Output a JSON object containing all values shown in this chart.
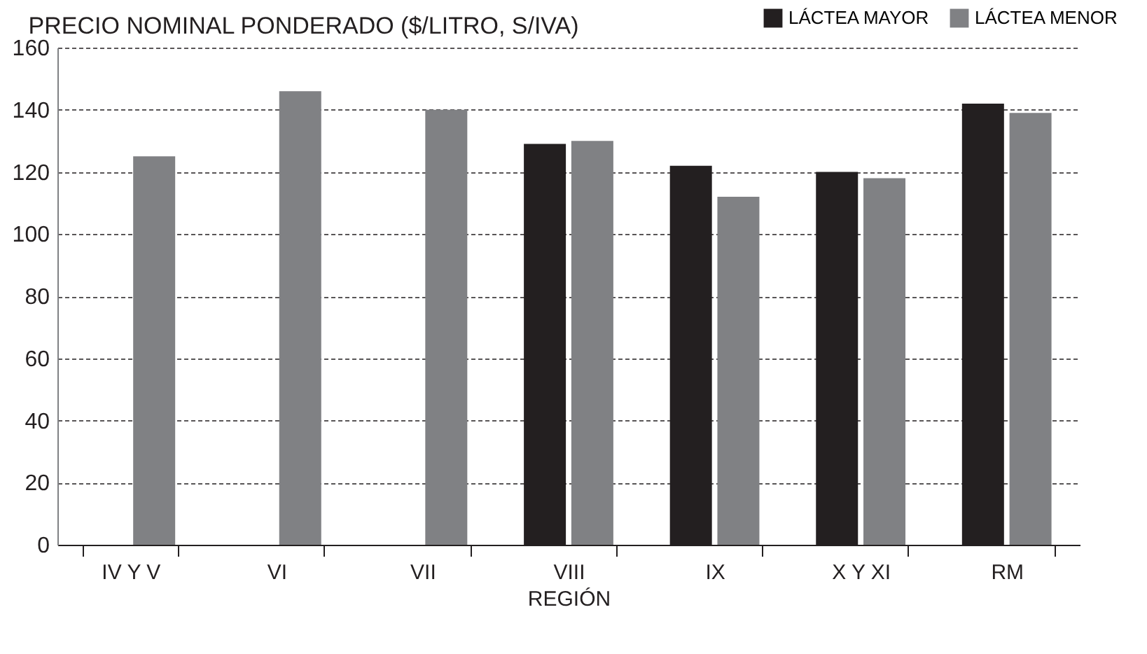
{
  "chart_data": {
    "type": "bar",
    "title": "PRECIO NOMINAL PONDERADO ($/LITRO, S/IVA)",
    "xlabel": "REGIÓN",
    "categories": [
      "IV Y V",
      "VI",
      "VII",
      "VIII",
      "IX",
      "X Y XI",
      "RM"
    ],
    "series": [
      {
        "name": "LÁCTEA MAYOR",
        "color": "#231f20",
        "values": [
          null,
          null,
          null,
          129,
          122,
          120,
          142
        ]
      },
      {
        "name": "LÁCTEA MENOR",
        "color": "#808184",
        "values": [
          125,
          146,
          140,
          130,
          112,
          118,
          139
        ]
      }
    ],
    "ylim": [
      0,
      160
    ],
    "yticks": [
      0,
      20,
      40,
      60,
      80,
      100,
      120,
      140,
      160
    ],
    "grid": "y",
    "legend": "top right"
  }
}
